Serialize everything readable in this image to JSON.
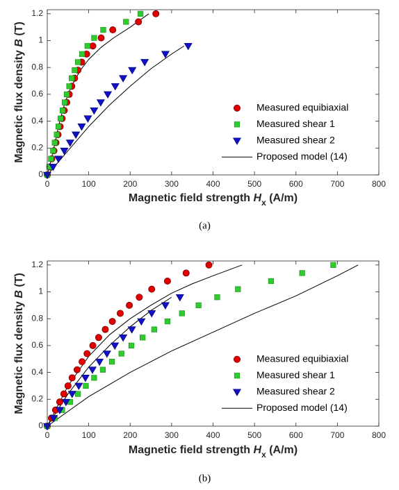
{
  "chart_data": [
    {
      "type": "scatter",
      "legend": "lower right",
      "grid": false,
      "caption": "(a)",
      "xlabel": [
        "Magnetic field strength ",
        "H",
        "x",
        " (A/m)"
      ],
      "ylabel": [
        "Magnetic flux density ",
        "B",
        " (T)"
      ],
      "xlim": [
        0,
        800
      ],
      "ylim": [
        0,
        1.23
      ],
      "xticks": [
        0,
        100,
        200,
        300,
        400,
        500,
        600,
        700,
        800
      ],
      "yticks": [
        0,
        0.2,
        0.4,
        0.6,
        0.8,
        1,
        1.2
      ],
      "series": [
        {
          "name": "Measured equibiaxial",
          "color": "#e00000",
          "marker": "circle",
          "x": [
            0,
            6,
            11,
            16,
            21,
            26,
            31,
            36,
            41,
            47,
            53,
            59,
            66,
            74,
            83,
            95,
            110,
            130,
            158,
            220,
            262
          ],
          "values": [
            0,
            0.06,
            0.12,
            0.18,
            0.24,
            0.3,
            0.36,
            0.42,
            0.48,
            0.54,
            0.6,
            0.66,
            0.72,
            0.78,
            0.84,
            0.9,
            0.96,
            1.02,
            1.08,
            1.14,
            1.2
          ]
        },
        {
          "name": "Measured shear 1",
          "color": "#2ecc2e",
          "marker": "square",
          "x": [
            0,
            5,
            9,
            14,
            18,
            23,
            27,
            32,
            37,
            42,
            47,
            53,
            59,
            66,
            74,
            84,
            97,
            113,
            135,
            190,
            225
          ],
          "values": [
            0,
            0.06,
            0.12,
            0.18,
            0.24,
            0.3,
            0.36,
            0.42,
            0.48,
            0.54,
            0.6,
            0.66,
            0.72,
            0.78,
            0.84,
            0.9,
            0.96,
            1.02,
            1.08,
            1.14,
            1.2
          ]
        },
        {
          "name": "Measured shear 2",
          "color": "#1010c8",
          "marker": "triangle",
          "x": [
            0,
            14,
            27,
            41,
            55,
            69,
            83,
            98,
            113,
            129,
            146,
            164,
            183,
            205,
            235,
            285,
            340
          ],
          "values": [
            0,
            0.06,
            0.12,
            0.18,
            0.24,
            0.3,
            0.36,
            0.42,
            0.48,
            0.54,
            0.6,
            0.66,
            0.72,
            0.78,
            0.84,
            0.9,
            0.96
          ]
        },
        {
          "name": "Proposed model (14)",
          "color": "#000000",
          "marker": "line",
          "x": [
            0,
            10,
            20,
            30,
            40,
            50,
            60,
            80,
            100,
            130,
            160,
            200,
            245,
            null,
            0,
            50,
            100,
            150,
            200,
            250,
            300,
            330
          ],
          "values": [
            0,
            0.12,
            0.26,
            0.4,
            0.51,
            0.6,
            0.67,
            0.78,
            0.86,
            0.95,
            1.02,
            1.1,
            1.2,
            null,
            0,
            0.18,
            0.36,
            0.52,
            0.66,
            0.79,
            0.9,
            0.96
          ]
        }
      ]
    },
    {
      "type": "scatter",
      "legend": "lower right",
      "grid": false,
      "caption": "(b)",
      "xlabel": [
        "Magnetic field strength ",
        "H",
        "x",
        " (A/m)"
      ],
      "ylabel": [
        "Magnetic flux density ",
        "B",
        " (T)"
      ],
      "xlim": [
        0,
        800
      ],
      "ylim": [
        0,
        1.23
      ],
      "xticks": [
        0,
        100,
        200,
        300,
        400,
        500,
        600,
        700,
        800
      ],
      "yticks": [
        0,
        0.2,
        0.4,
        0.6,
        0.8,
        1,
        1.2
      ],
      "series": [
        {
          "name": "Measured equibiaxial",
          "color": "#e00000",
          "marker": "circle",
          "x": [
            0,
            10,
            20,
            30,
            40,
            50,
            60,
            72,
            84,
            96,
            110,
            124,
            140,
            157,
            176,
            198,
            222,
            252,
            290,
            335,
            390
          ],
          "values": [
            0,
            0.06,
            0.12,
            0.18,
            0.24,
            0.3,
            0.36,
            0.42,
            0.48,
            0.54,
            0.6,
            0.66,
            0.72,
            0.78,
            0.84,
            0.9,
            0.96,
            1.02,
            1.08,
            1.14,
            1.2
          ]
        },
        {
          "name": "Measured shear 1",
          "color": "#2ecc2e",
          "marker": "square",
          "x": [
            0,
            18,
            36,
            55,
            74,
            93,
            113,
            134,
            156,
            179,
            203,
            230,
            258,
            290,
            325,
            365,
            410,
            460,
            540,
            615,
            690
          ],
          "values": [
            0,
            0.06,
            0.12,
            0.18,
            0.24,
            0.3,
            0.36,
            0.42,
            0.48,
            0.54,
            0.6,
            0.66,
            0.72,
            0.78,
            0.84,
            0.9,
            0.96,
            1.02,
            1.08,
            1.14,
            1.2
          ]
        },
        {
          "name": "Measured shear 2",
          "color": "#1010c8",
          "marker": "triangle",
          "x": [
            0,
            15,
            30,
            45,
            60,
            76,
            92,
            109,
            126,
            144,
            163,
            183,
            204,
            227,
            252,
            285,
            320
          ],
          "values": [
            0,
            0.06,
            0.12,
            0.18,
            0.24,
            0.3,
            0.36,
            0.42,
            0.48,
            0.54,
            0.6,
            0.66,
            0.72,
            0.78,
            0.84,
            0.9,
            0.96
          ]
        },
        {
          "name": "Proposed model (14)",
          "color": "#000000",
          "marker": "line",
          "x": [
            0,
            50,
            100,
            150,
            200,
            250,
            300,
            350,
            400,
            470,
            null,
            0,
            50,
            100,
            150,
            200,
            250,
            300,
            null,
            0,
            100,
            200,
            300,
            400,
            500,
            600,
            700,
            750
          ],
          "values": [
            0,
            0.3,
            0.52,
            0.68,
            0.8,
            0.9,
            0.99,
            1.06,
            1.12,
            1.2,
            null,
            0,
            0.24,
            0.44,
            0.6,
            0.74,
            0.86,
            0.96,
            null,
            0,
            0.22,
            0.4,
            0.56,
            0.7,
            0.84,
            0.97,
            1.12,
            1.2
          ]
        }
      ]
    }
  ]
}
